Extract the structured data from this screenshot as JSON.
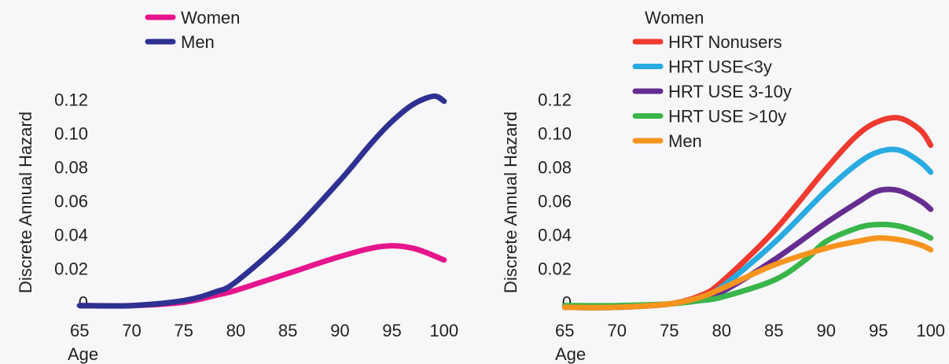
{
  "chart_data": [
    {
      "type": "line",
      "xlabel": "Age",
      "ylabel": "Discrete Annual Hazard",
      "xlim": [
        64,
        101
      ],
      "ylim": [
        -0.004,
        0.124
      ],
      "x_ticks": [
        "65",
        "70",
        "75",
        "80",
        "85",
        "90",
        "95",
        "100"
      ],
      "y_ticks": [
        "0",
        "0.02",
        "0.04",
        "0.06",
        "0.08",
        "0.10",
        "0.12"
      ],
      "legend_position": "top-left",
      "series": [
        {
          "name": "Women",
          "color": "#e6158c",
          "x": [
            65,
            70,
            75,
            78,
            80,
            85,
            90,
            94,
            97,
            100
          ],
          "y": [
            -0.002,
            -0.002,
            0.0,
            0.004,
            0.007,
            0.017,
            0.027,
            0.033,
            0.032,
            0.025
          ]
        },
        {
          "name": "Men",
          "color": "#2e3192",
          "x": [
            65,
            70,
            75,
            78,
            80,
            85,
            90,
            93,
            95,
            97,
            99,
            100
          ],
          "y": [
            -0.002,
            -0.002,
            0.001,
            0.006,
            0.012,
            0.039,
            0.072,
            0.094,
            0.107,
            0.117,
            0.122,
            0.119
          ]
        }
      ]
    },
    {
      "type": "line",
      "xlabel": "Age",
      "ylabel": "Discrete Annual Hazard",
      "xlim": [
        64,
        101
      ],
      "ylim": [
        -0.004,
        0.124
      ],
      "x_ticks": [
        "65",
        "70",
        "75",
        "80",
        "85",
        "90",
        "95",
        "100"
      ],
      "y_ticks": [
        "0",
        "0.02",
        "0.04",
        "0.06",
        "0.08",
        "0.10",
        "0.12"
      ],
      "legend_title": "Women",
      "legend_position": "top-right",
      "series": [
        {
          "name": "HRT Nonusers",
          "color": "#ee3a2f",
          "x": [
            65,
            70,
            75,
            78,
            80,
            85,
            90,
            93,
            95,
            97,
            99,
            100
          ],
          "y": [
            -0.003,
            -0.003,
            -0.001,
            0.004,
            0.012,
            0.042,
            0.079,
            0.099,
            0.107,
            0.109,
            0.102,
            0.093
          ]
        },
        {
          "name": "HRT USE<3y",
          "color": "#29aae1",
          "x": [
            65,
            70,
            75,
            78,
            80,
            85,
            90,
            93,
            95,
            97,
            99,
            100
          ],
          "y": [
            -0.003,
            -0.003,
            -0.001,
            0.003,
            0.009,
            0.035,
            0.066,
            0.082,
            0.089,
            0.09,
            0.083,
            0.077
          ]
        },
        {
          "name": "HRT USE 3-10y",
          "color": "#662d91",
          "x": [
            65,
            70,
            75,
            78,
            80,
            85,
            90,
            93,
            95,
            97,
            99,
            100
          ],
          "y": [
            -0.003,
            -0.003,
            -0.001,
            0.002,
            0.006,
            0.025,
            0.047,
            0.059,
            0.066,
            0.066,
            0.06,
            0.055
          ]
        },
        {
          "name": "HRT USE >10y",
          "color": "#39b54a",
          "x": [
            65,
            70,
            75,
            78,
            80,
            85,
            88,
            90,
            93,
            95,
            97,
            99,
            100
          ],
          "y": [
            -0.002,
            -0.002,
            -0.001,
            0.001,
            0.003,
            0.013,
            0.025,
            0.036,
            0.044,
            0.046,
            0.045,
            0.041,
            0.038
          ]
        },
        {
          "name": "Men",
          "color": "#f7941d",
          "x": [
            65,
            70,
            75,
            78,
            80,
            85,
            90,
            93,
            95,
            97,
            99,
            100
          ],
          "y": [
            -0.003,
            -0.003,
            -0.001,
            0.003,
            0.008,
            0.022,
            0.032,
            0.036,
            0.038,
            0.037,
            0.034,
            0.031
          ]
        }
      ]
    }
  ]
}
